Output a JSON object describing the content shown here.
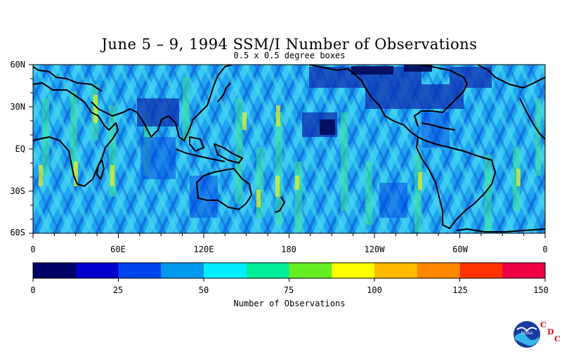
{
  "header": {
    "title": "June 5 – 9, 1994 SSM/I Number of Observations",
    "subtitle": "0.5 x 0.5 degree boxes"
  },
  "axes": {
    "lat_labels": [
      "60N",
      "30N",
      "EQ",
      "30S",
      "60S"
    ],
    "lon_labels": [
      "0",
      "60E",
      "120E",
      "180",
      "120W",
      "60W",
      "0"
    ]
  },
  "colorbar": {
    "label": "Number of Observations",
    "ticks": [
      "0",
      "25",
      "50",
      "75",
      "100",
      "125",
      "150"
    ],
    "colors": [
      "#000066",
      "#0000cc",
      "#0044ee",
      "#0099ee",
      "#00eeff",
      "#00ee99",
      "#66ee22",
      "#ffff00",
      "#ffbb00",
      "#ff8800",
      "#ff3300",
      "#ee0044"
    ]
  },
  "logo": {
    "name": "noaa-logo",
    "text": "NOAA",
    "cdc_letters": [
      "C",
      "D",
      "C"
    ]
  }
}
